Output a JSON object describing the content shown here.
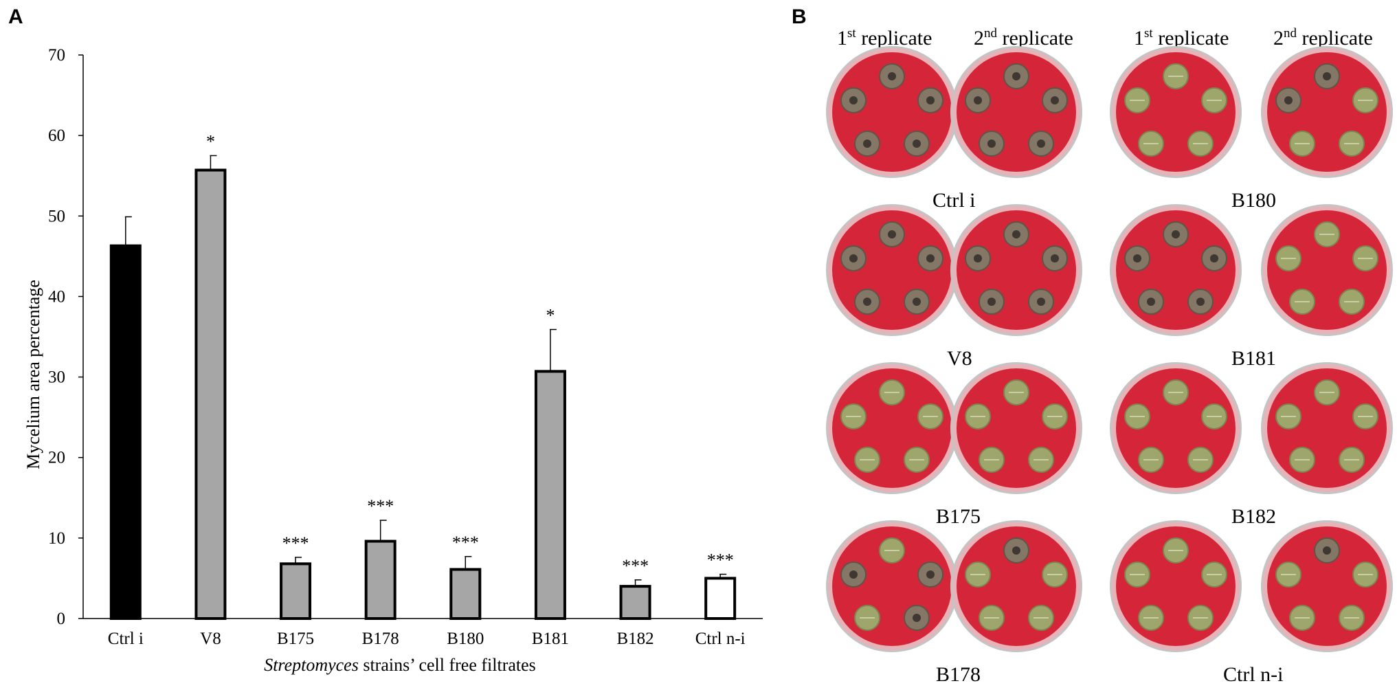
{
  "panel_labels": {
    "a": "A",
    "b": "B"
  },
  "chart_data": {
    "type": "bar",
    "ylabel": "Mycelium area percentage",
    "xlabel_italic": "Streptomyces",
    "xlabel_rest": " strains’ cell free filtrates",
    "ylim": [
      0,
      70
    ],
    "yticks": [
      0,
      10,
      20,
      30,
      40,
      50,
      60,
      70
    ],
    "grid": false,
    "categories": [
      "Ctrl i",
      "V8",
      "B175",
      "B178",
      "B180",
      "B181",
      "B182",
      "Ctrl n-i"
    ],
    "values": [
      46.3,
      55.7,
      6.8,
      9.6,
      6.1,
      30.7,
      4.0,
      5.0
    ],
    "errors": [
      3.6,
      1.8,
      0.8,
      2.6,
      1.6,
      5.2,
      0.8,
      0.5
    ],
    "significance": [
      "",
      "*",
      "***",
      "***",
      "***",
      "*",
      "***",
      "***"
    ],
    "bar_fills": [
      "#000000",
      "#a6a6a6",
      "#a6a6a6",
      "#a6a6a6",
      "#a6a6a6",
      "#a6a6a6",
      "#a6a6a6",
      "#ffffff"
    ]
  },
  "panel_b": {
    "replicate_headers": [
      {
        "sup_base": "1",
        "sup": "st",
        "text": " replicate"
      },
      {
        "sup_base": "2",
        "sup": "nd",
        "text": " replicate"
      },
      {
        "sup_base": "1",
        "sup": "st",
        "text": " replicate"
      },
      {
        "sup_base": "2",
        "sup": "nd",
        "text": " replicate"
      }
    ],
    "plate_labels": [
      "Ctrl i",
      "B180",
      "V8",
      "B181",
      "B175",
      "B182",
      "B178",
      "Ctrl n-i"
    ],
    "colors": {
      "agar": "#d42638",
      "rim": "#e8b3b8",
      "leaf_green": "#9fa66b",
      "mycelium": "#857766"
    },
    "plates": [
      {
        "row": 0,
        "col": 0,
        "leaves": [
          "m",
          "m",
          "m",
          "m",
          "m"
        ]
      },
      {
        "row": 0,
        "col": 1,
        "leaves": [
          "m",
          "m",
          "m",
          "m",
          "m"
        ]
      },
      {
        "row": 0,
        "col": 2,
        "leaves": [
          "g",
          "g",
          "g",
          "g",
          "g"
        ]
      },
      {
        "row": 0,
        "col": 3,
        "leaves": [
          "m",
          "m",
          "g",
          "g",
          "g"
        ]
      },
      {
        "row": 1,
        "col": 0,
        "leaves": [
          "m",
          "m",
          "m",
          "m",
          "m"
        ]
      },
      {
        "row": 1,
        "col": 1,
        "leaves": [
          "m",
          "m",
          "m",
          "m",
          "m"
        ]
      },
      {
        "row": 1,
        "col": 2,
        "leaves": [
          "m",
          "m",
          "m",
          "m",
          "m"
        ]
      },
      {
        "row": 1,
        "col": 3,
        "leaves": [
          "g",
          "g",
          "g",
          "g",
          "g"
        ]
      },
      {
        "row": 2,
        "col": 0,
        "leaves": [
          "g",
          "g",
          "g",
          "g",
          "g"
        ]
      },
      {
        "row": 2,
        "col": 1,
        "leaves": [
          "g",
          "g",
          "g",
          "g",
          "g"
        ]
      },
      {
        "row": 2,
        "col": 2,
        "leaves": [
          "g",
          "g",
          "g",
          "g",
          "g"
        ]
      },
      {
        "row": 2,
        "col": 3,
        "leaves": [
          "g",
          "g",
          "g",
          "g",
          "g"
        ]
      },
      {
        "row": 3,
        "col": 0,
        "leaves": [
          "g",
          "m",
          "m",
          "g",
          "m"
        ]
      },
      {
        "row": 3,
        "col": 1,
        "leaves": [
          "m",
          "g",
          "g",
          "g",
          "g"
        ]
      },
      {
        "row": 3,
        "col": 2,
        "leaves": [
          "g",
          "g",
          "g",
          "g",
          "g"
        ]
      },
      {
        "row": 3,
        "col": 3,
        "leaves": [
          "m",
          "g",
          "g",
          "g",
          "g"
        ]
      }
    ]
  }
}
